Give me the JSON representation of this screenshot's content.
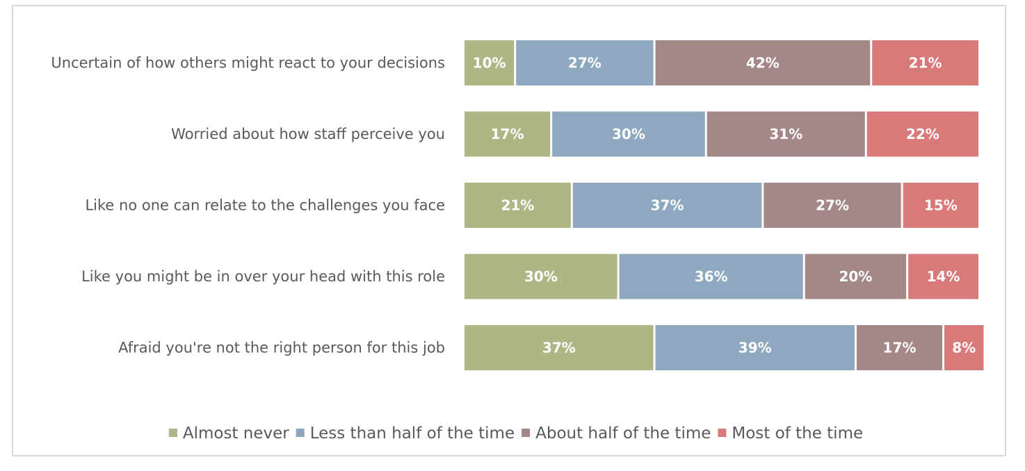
{
  "chart_data": {
    "type": "bar",
    "orientation": "horizontal",
    "stacked": true,
    "title": "",
    "xlabel": "",
    "ylabel": "",
    "xlim": [
      0,
      100
    ],
    "grid": false,
    "legend_position": "bottom",
    "categories": [
      "Uncertain of how others might react to your decisions",
      "Worried about how staff perceive you",
      "Like no one can relate to the challenges you face",
      "Like you might be in over your head with this role",
      "Afraid you're not the right person for this job"
    ],
    "series": [
      {
        "name": "Almost never",
        "color": "#afb584",
        "values": [
          10,
          17,
          21,
          30,
          37
        ],
        "labels": [
          "10%",
          "17%",
          "21%",
          "30%",
          "37%"
        ]
      },
      {
        "name": "Less than half of the time",
        "color": "#8ea9bf",
        "values": [
          27,
          30,
          37,
          36,
          39
        ],
        "labels": [
          "27%",
          "30%",
          "37%",
          "36%",
          "39%"
        ]
      },
      {
        "name": "About half of the time",
        "color": "#a48888",
        "values": [
          42,
          31,
          27,
          20,
          17
        ],
        "labels": [
          "42%",
          "31%",
          "27%",
          "20%",
          "17%"
        ]
      },
      {
        "name": "Most of the time",
        "color": "#d97a7a",
        "values": [
          21,
          22,
          15,
          14,
          8
        ],
        "labels": [
          "21%",
          "22%",
          "15%",
          "14%",
          "8%"
        ]
      }
    ]
  }
}
